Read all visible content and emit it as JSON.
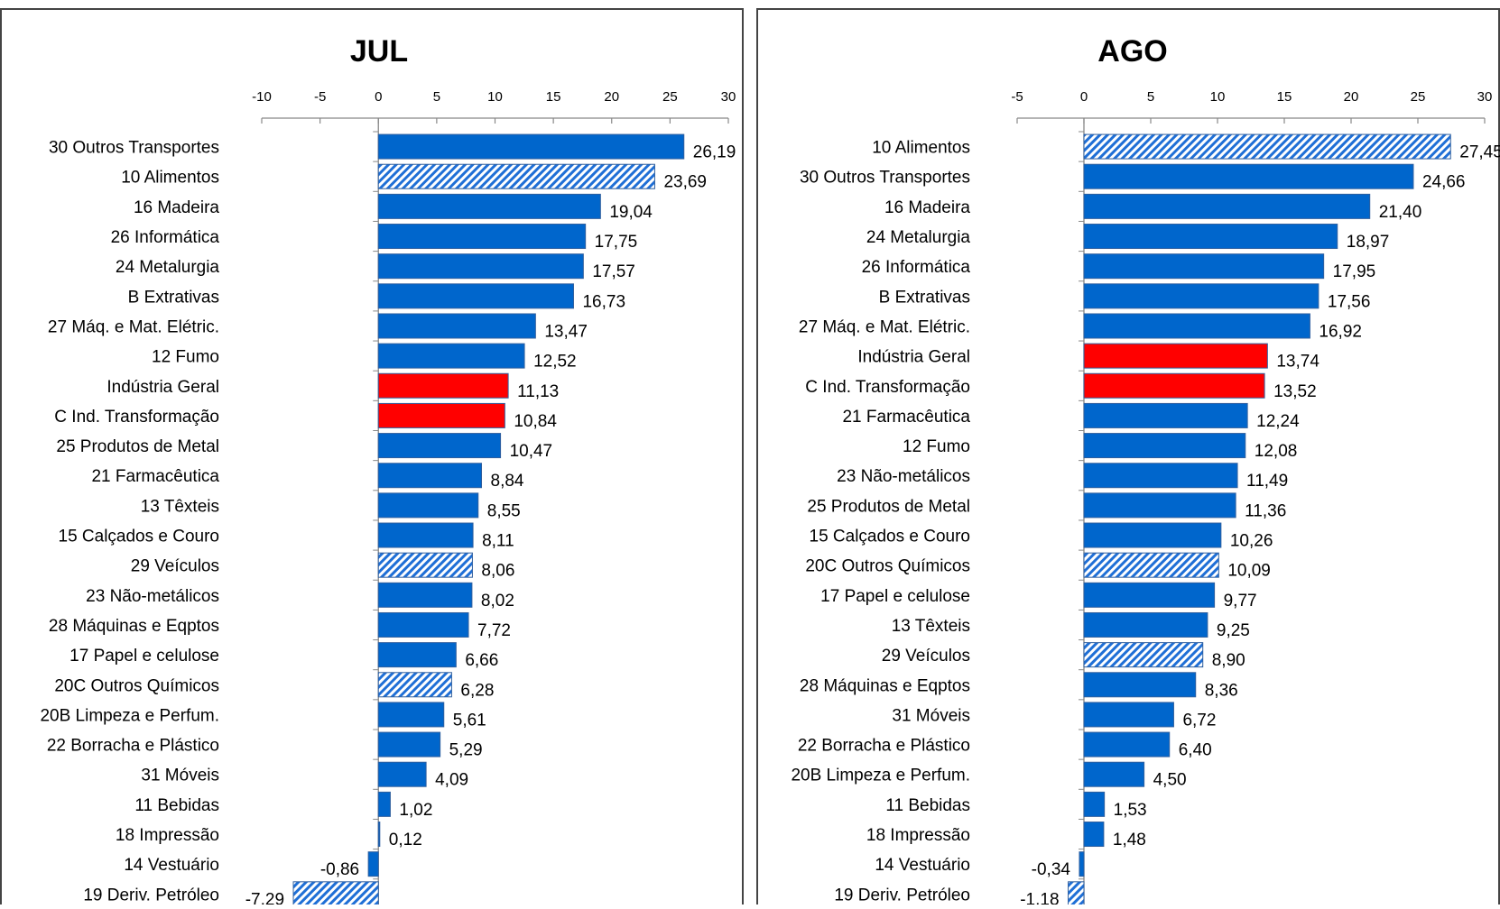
{
  "colors": {
    "normal": "#0066cc",
    "highlight": "#ff0000",
    "hatch": "#1f6fd6",
    "frame": "#444444"
  },
  "chart_data": [
    {
      "type": "bar",
      "orientation": "horizontal",
      "title": "JUL",
      "xlim": [
        -10,
        30
      ],
      "ticks": [
        -10,
        -5,
        0,
        5,
        10,
        15,
        20,
        25,
        30
      ],
      "tick_labels": [
        "-10",
        "-5",
        "0",
        "5",
        "10",
        "15",
        "20",
        "25",
        "30"
      ],
      "grid": false,
      "categories": [
        "30  Outros Transportes",
        "10  Alimentos",
        "16  Madeira",
        "26  Informática",
        "24  Metalurgia",
        "B  Extrativas",
        "27  Máq. e Mat. Elétric.",
        "12  Fumo",
        "Indústria Geral",
        "C  Ind. Transformação",
        "25  Produtos de Metal",
        "21  Farmacêutica",
        "13  Têxteis",
        "15  Calçados e Couro",
        "29  Veículos",
        "23  Não-metálicos",
        "28  Máquinas e Eqptos",
        "17  Papel e celulose",
        "20C  Outros Químicos",
        "20B  Limpeza e Perfum.",
        "22  Borracha e Plástico",
        "31  Móveis",
        "11  Bebidas",
        "18  Impressão",
        "14  Vestuário",
        "19  Deriv. Petróleo"
      ],
      "values": [
        26.19,
        23.69,
        19.04,
        17.75,
        17.57,
        16.73,
        13.47,
        12.52,
        11.13,
        10.84,
        10.47,
        8.84,
        8.55,
        8.11,
        8.06,
        8.02,
        7.72,
        6.66,
        6.28,
        5.61,
        5.29,
        4.09,
        1.02,
        0.12,
        -0.86,
        -7.29
      ],
      "value_labels": [
        "26,19",
        "23,69",
        "19,04",
        "17,75",
        "17,57",
        "16,73",
        "13,47",
        "12,52",
        "11,13",
        "10,84",
        "10,47",
        "8,84",
        "8,55",
        "8,11",
        "8,06",
        "8,02",
        "7,72",
        "6,66",
        "6,28",
        "5,61",
        "5,29",
        "4,09",
        "1,02",
        "0,12",
        "-0,86",
        "-7,29"
      ],
      "styles": [
        "normal",
        "hatch",
        "normal",
        "normal",
        "normal",
        "normal",
        "normal",
        "normal",
        "highlight",
        "highlight",
        "normal",
        "normal",
        "normal",
        "normal",
        "hatch",
        "normal",
        "normal",
        "normal",
        "hatch",
        "normal",
        "normal",
        "normal",
        "normal",
        "normal",
        "normal",
        "hatch"
      ]
    },
    {
      "type": "bar",
      "orientation": "horizontal",
      "title": "AGO",
      "xlim": [
        -5,
        30
      ],
      "ticks": [
        -5,
        0,
        5,
        10,
        15,
        20,
        25,
        30
      ],
      "tick_labels": [
        "-5",
        "0",
        "5",
        "10",
        "15",
        "20",
        "25",
        "30"
      ],
      "grid": false,
      "categories": [
        "10  Alimentos",
        "30  Outros Transportes",
        "16  Madeira",
        "24  Metalurgia",
        "26  Informática",
        "B  Extrativas",
        "27  Máq. e Mat. Elétric.",
        "Indústria Geral",
        "C  Ind. Transformação",
        "21  Farmacêutica",
        "12  Fumo",
        "23  Não-metálicos",
        "25  Produtos de Metal",
        "15  Calçados e Couro",
        "20C  Outros Químicos",
        "17  Papel e celulose",
        "13  Têxteis",
        "29  Veículos",
        "28  Máquinas e Eqptos",
        "31  Móveis",
        "22  Borracha e Plástico",
        "20B  Limpeza e Perfum.",
        "11  Bebidas",
        "18  Impressão",
        "14  Vestuário",
        "19  Deriv. Petróleo"
      ],
      "values": [
        27.45,
        24.66,
        21.4,
        18.97,
        17.95,
        17.56,
        16.92,
        13.74,
        13.52,
        12.24,
        12.08,
        11.49,
        11.36,
        10.26,
        10.09,
        9.77,
        9.25,
        8.9,
        8.36,
        6.72,
        6.4,
        4.5,
        1.53,
        1.48,
        -0.34,
        -1.18
      ],
      "value_labels": [
        "27,45",
        "24,66",
        "21,40",
        "18,97",
        "17,95",
        "17,56",
        "16,92",
        "13,74",
        "13,52",
        "12,24",
        "12,08",
        "11,49",
        "11,36",
        "10,26",
        "10,09",
        "9,77",
        "9,25",
        "8,90",
        "8,36",
        "6,72",
        "6,40",
        "4,50",
        "1,53",
        "1,48",
        "-0,34",
        "-1,18"
      ],
      "styles": [
        "hatch",
        "normal",
        "normal",
        "normal",
        "normal",
        "normal",
        "normal",
        "highlight",
        "highlight",
        "normal",
        "normal",
        "normal",
        "normal",
        "normal",
        "hatch",
        "normal",
        "normal",
        "hatch",
        "normal",
        "normal",
        "normal",
        "normal",
        "normal",
        "normal",
        "normal",
        "hatch"
      ]
    }
  ]
}
